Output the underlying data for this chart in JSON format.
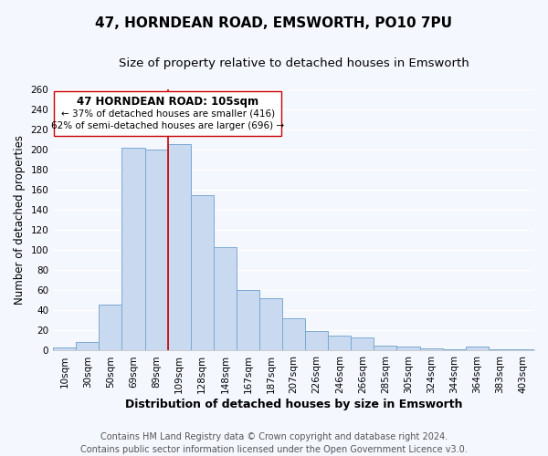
{
  "title": "47, HORNDEAN ROAD, EMSWORTH, PO10 7PU",
  "subtitle": "Size of property relative to detached houses in Emsworth",
  "xlabel": "Distribution of detached houses by size in Emsworth",
  "ylabel": "Number of detached properties",
  "footer_line1": "Contains HM Land Registry data © Crown copyright and database right 2024.",
  "footer_line2": "Contains public sector information licensed under the Open Government Licence v3.0.",
  "bin_labels": [
    "10sqm",
    "30sqm",
    "50sqm",
    "69sqm",
    "89sqm",
    "109sqm",
    "128sqm",
    "148sqm",
    "167sqm",
    "187sqm",
    "207sqm",
    "226sqm",
    "246sqm",
    "266sqm",
    "285sqm",
    "305sqm",
    "324sqm",
    "344sqm",
    "364sqm",
    "383sqm",
    "403sqm"
  ],
  "bar_heights": [
    3,
    9,
    46,
    202,
    200,
    205,
    154,
    103,
    60,
    52,
    32,
    19,
    15,
    13,
    5,
    4,
    2,
    1,
    4,
    1,
    1
  ],
  "bar_color": "#c9d9f0",
  "bar_edge_color": "#7aaad0",
  "vline_color": "#cc0000",
  "annotation_title": "47 HORNDEAN ROAD: 105sqm",
  "annotation_line1": "← 37% of detached houses are smaller (416)",
  "annotation_line2": "62% of semi-detached houses are larger (696) →",
  "annotation_box_color": "#ffffff",
  "annotation_box_edge": "#cc0000",
  "ylim": [
    0,
    260
  ],
  "yticks": [
    0,
    20,
    40,
    60,
    80,
    100,
    120,
    140,
    160,
    180,
    200,
    220,
    240,
    260
  ],
  "bg_color": "#f5f7ff",
  "plot_bg_color": "#f5f7ff",
  "grid_color": "#ffffff",
  "title_fontsize": 11,
  "subtitle_fontsize": 9.5,
  "xlabel_fontsize": 9,
  "ylabel_fontsize": 8.5,
  "tick_fontsize": 7.5,
  "footer_fontsize": 7,
  "ann_title_fontsize": 8.5,
  "ann_text_fontsize": 7.5
}
